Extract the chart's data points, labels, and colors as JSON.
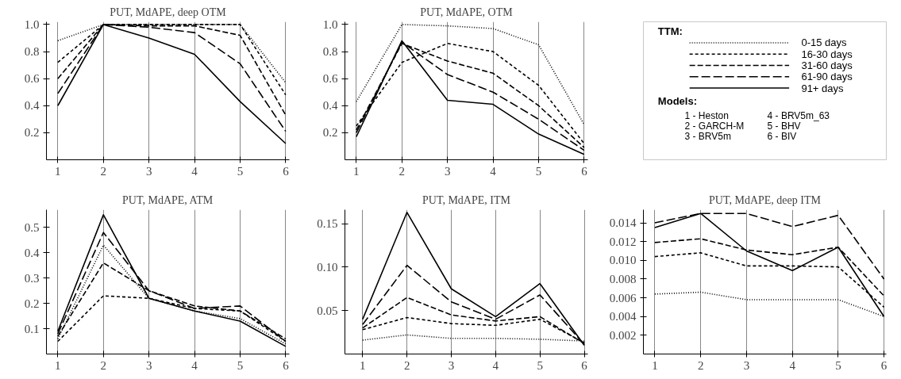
{
  "chart_data": [
    {
      "type": "line",
      "title": "PUT, MdAPE, deep OTM",
      "x": [
        1,
        2,
        3,
        4,
        5,
        6
      ],
      "xlim": [
        0.75,
        6.08
      ],
      "xticks": [
        1,
        2,
        3,
        4,
        5,
        6
      ],
      "ylim": [
        0,
        1.02
      ],
      "yticks": [
        0.2,
        0.4,
        0.6,
        0.8,
        {
          "value": 1,
          "label": "1.0"
        }
      ],
      "grid": "x",
      "series": [
        {
          "color": "#000000",
          "line_style": "dotted",
          "values": [
            0.88,
            1.0,
            1.0,
            1.0,
            1.0,
            0.57
          ]
        },
        {
          "color": "#000000",
          "line_style": "dashed",
          "values": [
            0.72,
            1.0,
            1.0,
            1.0,
            1.0,
            0.48
          ]
        },
        {
          "color": "#000000",
          "line_style": "dashed",
          "values": [
            0.6,
            1.0,
            0.99,
            0.99,
            0.92,
            0.33
          ]
        },
        {
          "color": "#000000",
          "line_style": "dashed",
          "values": [
            0.49,
            1.0,
            0.98,
            0.94,
            0.71,
            0.21
          ]
        },
        {
          "color": "#000000",
          "line_style": "solid",
          "values": [
            0.4,
            1.0,
            0.9,
            0.78,
            0.43,
            0.12
          ]
        }
      ]
    },
    {
      "type": "line",
      "title": "PUT, MdAPE, OTM",
      "x": [
        1,
        2,
        3,
        4,
        5,
        6
      ],
      "xlim": [
        0.75,
        6.08
      ],
      "xticks": [
        1,
        2,
        3,
        4,
        5,
        6
      ],
      "ylim": [
        0,
        1.02
      ],
      "yticks": [
        0.2,
        0.4,
        0.6,
        0.8,
        {
          "value": 1,
          "label": "1.0"
        }
      ],
      "grid": "x",
      "series": [
        {
          "color": "#000000",
          "line_style": "dotted",
          "values": [
            0.43,
            1.0,
            0.99,
            0.97,
            0.85,
            0.26
          ]
        },
        {
          "color": "#000000",
          "line_style": "dashed",
          "values": [
            0.25,
            0.72,
            0.86,
            0.8,
            0.55,
            0.12
          ]
        },
        {
          "color": "#000000",
          "line_style": "dashed",
          "values": [
            0.22,
            0.86,
            0.73,
            0.64,
            0.4,
            0.09
          ]
        },
        {
          "color": "#000000",
          "line_style": "dashed",
          "values": [
            0.2,
            0.87,
            0.63,
            0.5,
            0.3,
            0.07
          ]
        },
        {
          "color": "#000000",
          "line_style": "solid",
          "values": [
            0.17,
            0.88,
            0.44,
            0.41,
            0.19,
            0.04
          ]
        }
      ]
    },
    {
      "type": "other",
      "legend_title": "TTM:",
      "series": [
        {
          "name": "0-15 days",
          "line_style": "dotted"
        },
        {
          "name": "16-30 days",
          "line_style": "dashed"
        },
        {
          "name": "31-60 days",
          "line_style": "dashed"
        },
        {
          "name": "61-90 days",
          "line_style": "dashed"
        },
        {
          "name": "91+ days",
          "line_style": "solid"
        }
      ],
      "annotations": [
        "Models:",
        "1 - Heston",
        "2 - GARCH-M",
        "3 - BRV5m",
        "4 - BRV5m_63",
        "5 - BHV",
        "6 - BIV"
      ]
    },
    {
      "type": "line",
      "title": "PUT, MdAPE, ATM",
      "x": [
        1,
        2,
        3,
        4,
        5,
        6
      ],
      "xlim": [
        0.75,
        6.08
      ],
      "xticks": [
        1,
        2,
        3,
        4,
        5,
        6
      ],
      "ylim": [
        0,
        0.57
      ],
      "yticks": [
        0.1,
        0.2,
        0.3,
        0.4,
        0.5
      ],
      "grid": "x",
      "series": [
        {
          "color": "#000000",
          "line_style": "dotted",
          "values": [
            0.06,
            0.43,
            0.22,
            0.17,
            0.14,
            0.04
          ]
        },
        {
          "color": "#000000",
          "line_style": "dashed",
          "values": [
            0.05,
            0.23,
            0.22,
            0.18,
            0.17,
            0.05
          ]
        },
        {
          "color": "#000000",
          "line_style": "dashed",
          "values": [
            0.07,
            0.36,
            0.25,
            0.19,
            0.17,
            0.06
          ]
        },
        {
          "color": "#000000",
          "line_style": "dashed",
          "values": [
            0.08,
            0.48,
            0.25,
            0.18,
            0.19,
            0.05
          ]
        },
        {
          "color": "#000000",
          "line_style": "solid",
          "values": [
            0.09,
            0.55,
            0.22,
            0.17,
            0.13,
            0.03
          ]
        }
      ]
    },
    {
      "type": "line",
      "title": "PUT, MdAPE, ITM",
      "x": [
        1,
        2,
        3,
        4,
        5,
        6
      ],
      "xlim": [
        0.6,
        6.08
      ],
      "xticks": [
        1,
        2,
        3,
        4,
        5,
        6
      ],
      "ylim": [
        0,
        0.166
      ],
      "yticks": [
        0.05,
        {
          "value": 0.1,
          "label": "0.10"
        },
        0.15
      ],
      "grid": "x",
      "series": [
        {
          "color": "#000000",
          "line_style": "dotted",
          "values": [
            0.016,
            0.022,
            0.018,
            0.018,
            0.017,
            0.015
          ]
        },
        {
          "color": "#000000",
          "line_style": "dashed",
          "values": [
            0.028,
            0.042,
            0.035,
            0.033,
            0.04,
            0.013
          ]
        },
        {
          "color": "#000000",
          "line_style": "dashed",
          "values": [
            0.03,
            0.065,
            0.045,
            0.038,
            0.043,
            0.012
          ]
        },
        {
          "color": "#000000",
          "line_style": "dashed",
          "values": [
            0.034,
            0.102,
            0.06,
            0.04,
            0.068,
            0.011
          ]
        },
        {
          "color": "#000000",
          "line_style": "solid",
          "values": [
            0.04,
            0.163,
            0.075,
            0.043,
            0.081,
            0.01
          ]
        }
      ]
    },
    {
      "type": "line",
      "title": "PUT, MdAPE, deep ITM",
      "x": [
        1,
        2,
        3,
        4,
        5,
        6
      ],
      "xlim": [
        0.75,
        6.05
      ],
      "xticks": [
        1,
        2,
        3,
        4,
        5,
        6
      ],
      "ylim": [
        0,
        0.0154
      ],
      "yticks": [
        0.002,
        0.004,
        0.006,
        0.008,
        {
          "value": 0.01,
          "label": "0.010"
        },
        0.012,
        0.014
      ],
      "grid": "x",
      "series": [
        {
          "color": "#000000",
          "line_style": "dotted",
          "values": [
            0.0064,
            0.0066,
            0.0058,
            0.0058,
            0.0058,
            0.004
          ]
        },
        {
          "color": "#000000",
          "line_style": "dashed",
          "values": [
            0.0104,
            0.0108,
            0.0094,
            0.0094,
            0.0093,
            0.005
          ]
        },
        {
          "color": "#000000",
          "line_style": "dashed",
          "values": [
            0.0119,
            0.0123,
            0.0111,
            0.0106,
            0.0114,
            0.0062
          ]
        },
        {
          "color": "#000000",
          "line_style": "dashed",
          "values": [
            0.014,
            0.015,
            0.015,
            0.0136,
            0.0148,
            0.008
          ]
        },
        {
          "color": "#000000",
          "line_style": "solid",
          "values": [
            0.0135,
            0.015,
            0.011,
            0.0089,
            0.0114,
            0.004
          ]
        }
      ]
    }
  ]
}
